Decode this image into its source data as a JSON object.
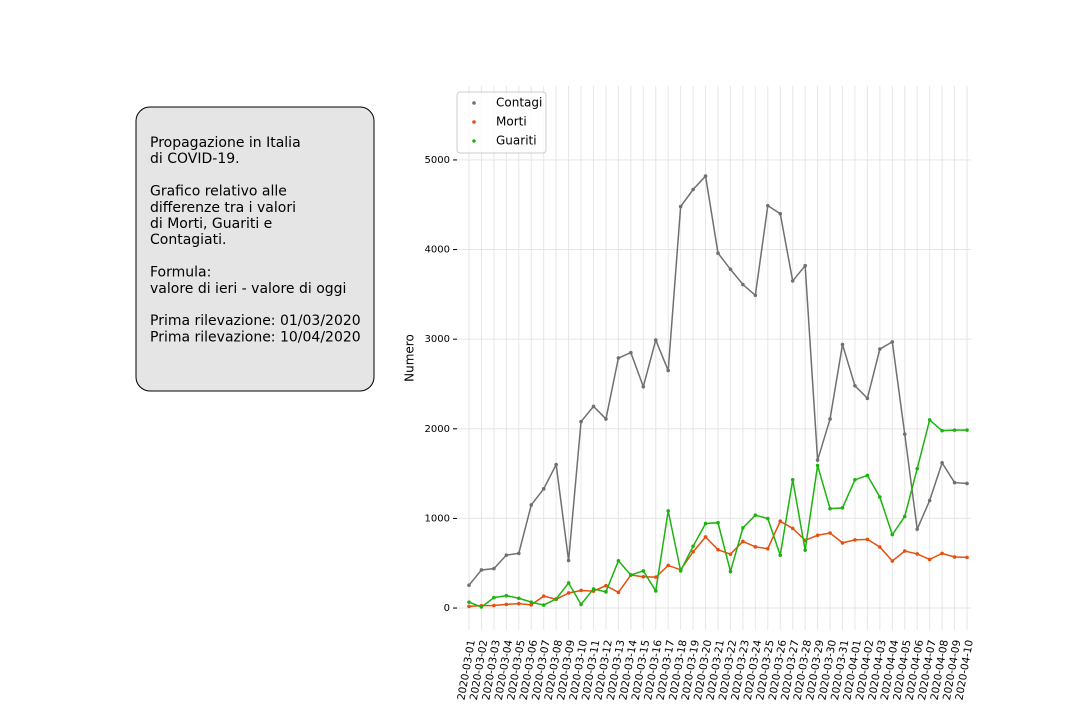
{
  "chart_data": {
    "type": "line",
    "y_label": "Numero",
    "info_box": [
      [
        "Propagazione in Italia",
        "di COVID-19."
      ],
      [
        "Grafico relativo alle",
        "differenze tra i valori",
        "di Morti, Guariti e",
        "Contagiati."
      ],
      [
        "Formula:",
        "valore di ieri - valore di oggi"
      ],
      [
        "Prima rilevazione: 01/03/2020",
        "Prima rilevazione: 10/04/2020"
      ]
    ],
    "categories": [
      "2020-03-01",
      "2020-03-02",
      "2020-03-03",
      "2020-03-04",
      "2020-03-05",
      "2020-03-06",
      "2020-03-07",
      "2020-03-08",
      "2020-03-09",
      "2020-03-10",
      "2020-03-11",
      "2020-03-12",
      "2020-03-13",
      "2020-03-14",
      "2020-03-15",
      "2020-03-16",
      "2020-03-17",
      "2020-03-18",
      "2020-03-19",
      "2020-03-20",
      "2020-03-21",
      "2020-03-22",
      "2020-03-23",
      "2020-03-24",
      "2020-03-25",
      "2020-03-26",
      "2020-03-27",
      "2020-03-28",
      "2020-03-29",
      "2020-03-30",
      "2020-03-31",
      "2020-04-01",
      "2020-04-02",
      "2020-04-03",
      "2020-04-04",
      "2020-04-05",
      "2020-04-06",
      "2020-04-07",
      "2020-04-08",
      "2020-04-09",
      "2020-04-10"
    ],
    "series": [
      {
        "name": "Contagi",
        "color": "#707070",
        "values": [
          255,
          425,
          440,
          590,
          610,
          1150,
          1330,
          1600,
          530,
          2080,
          2250,
          2110,
          2790,
          2850,
          2470,
          2990,
          2650,
          4480,
          4670,
          4820,
          3960,
          3780,
          3610,
          3490,
          4490,
          4400,
          3650,
          3820,
          1650,
          2110,
          2940,
          2480,
          2340,
          2890,
          2970,
          1940,
          880,
          1200,
          1620,
          1400,
          1390
        ]
      },
      {
        "name": "Morti",
        "color": "#e6500f",
        "values": [
          18,
          27,
          28,
          41,
          49,
          36,
          133,
          97,
          168,
          196,
          189,
          250,
          175,
          368,
          349,
          345,
          475,
          427,
          627,
          793,
          651,
          601,
          743,
          683,
          662,
          969,
          889,
          756,
          812,
          837,
          727,
          760,
          766,
          681,
          525,
          636,
          604,
          542,
          610,
          570,
          565
        ]
      },
      {
        "name": "Guariti",
        "color": "#1db30f",
        "values": [
          66,
          11,
          116,
          138,
          109,
          66,
          33,
          102,
          280,
          41,
          213,
          181,
          527,
          369,
          414,
          192,
          1084,
          415,
          689,
          943,
          952,
          408,
          894,
          1036,
          999,
          589,
          1431,
          646,
          1590,
          1109,
          1118,
          1431,
          1480,
          1238,
          819,
          1022,
          1555,
          2099,
          1979,
          1985,
          1985
        ]
      }
    ],
    "ylim": [
      -245,
      5825
    ],
    "yticks": [
      0,
      1000,
      2000,
      3000,
      4000,
      5000
    ],
    "grid": true,
    "legend": "upper left"
  }
}
